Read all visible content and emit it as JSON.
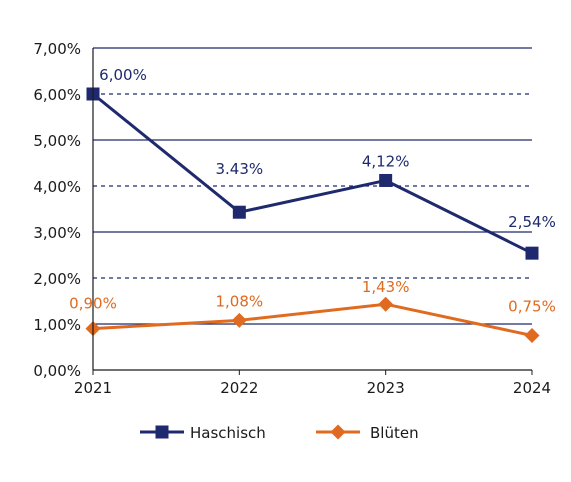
{
  "chart_data": {
    "type": "line",
    "x": [
      "2021",
      "2022",
      "2023",
      "2024"
    ],
    "series": [
      {
        "name": "Haschisch",
        "values": [
          6.0,
          3.43,
          4.12,
          2.54
        ],
        "data_labels": [
          "6,00%",
          "3.43%",
          "4,12%",
          "2,54%"
        ],
        "color": "#1f2a6e",
        "marker": "square"
      },
      {
        "name": "Blüten",
        "values": [
          0.9,
          1.08,
          1.43,
          0.75
        ],
        "data_labels": [
          "0,90%",
          "1,08%",
          "1,43%",
          "0,75%"
        ],
        "color": "#e06a1f",
        "marker": "diamond"
      }
    ],
    "y_ticks": [
      0,
      1,
      2,
      3,
      4,
      5,
      6,
      7
    ],
    "y_tick_labels": [
      "0,00%",
      "1,00%",
      "2,00%",
      "3,00%",
      "4,00%",
      "5,00%",
      "6,00%",
      "7,00%"
    ],
    "ylim": [
      0,
      7
    ],
    "grid": "horizontal",
    "legend_position": "bottom"
  }
}
